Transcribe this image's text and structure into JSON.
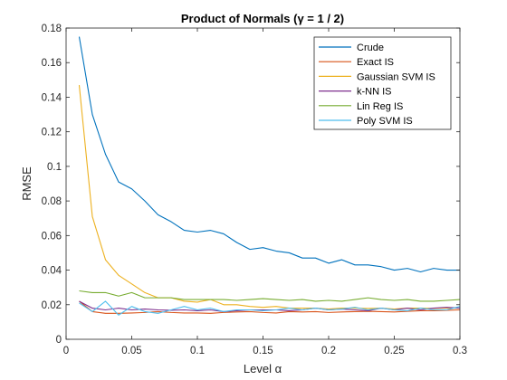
{
  "chart_data": {
    "type": "line",
    "title": "Product of Normals (γ = 1 / 2)",
    "xlabel": "Level α",
    "ylabel": "RMSE",
    "xlim": [
      0,
      0.3
    ],
    "ylim": [
      0,
      0.18
    ],
    "x_ticks": [
      0,
      0.05,
      0.1,
      0.15,
      0.2,
      0.25,
      0.3
    ],
    "x_tick_labels": [
      "0",
      "0.05",
      "0.1",
      "0.15",
      "0.2",
      "0.25",
      "0.3"
    ],
    "y_ticks": [
      0,
      0.02,
      0.04,
      0.06,
      0.08,
      0.1,
      0.12,
      0.14,
      0.16,
      0.18
    ],
    "y_tick_labels": [
      "0",
      "0.02",
      "0.04",
      "0.06",
      "0.08",
      "0.1",
      "0.12",
      "0.14",
      "0.16",
      "0.18"
    ],
    "grid": false,
    "legend_position": "top-right",
    "x": [
      0.01,
      0.02,
      0.03,
      0.04,
      0.05,
      0.06,
      0.07,
      0.08,
      0.09,
      0.1,
      0.11,
      0.12,
      0.13,
      0.14,
      0.15,
      0.16,
      0.17,
      0.18,
      0.19,
      0.2,
      0.21,
      0.22,
      0.23,
      0.24,
      0.25,
      0.26,
      0.27,
      0.28,
      0.29,
      0.3
    ],
    "series": [
      {
        "name": "Crude",
        "color": "#0072BD",
        "values": [
          0.175,
          0.13,
          0.107,
          0.091,
          0.087,
          0.08,
          0.072,
          0.068,
          0.063,
          0.062,
          0.063,
          0.061,
          0.056,
          0.052,
          0.053,
          0.051,
          0.05,
          0.047,
          0.047,
          0.044,
          0.046,
          0.043,
          0.043,
          0.042,
          0.04,
          0.041,
          0.039,
          0.041,
          0.04,
          0.04
        ]
      },
      {
        "name": "Exact IS",
        "color": "#D95319",
        "values": [
          0.022,
          0.016,
          0.015,
          0.015,
          0.0152,
          0.0155,
          0.016,
          0.0155,
          0.0152,
          0.0152,
          0.015,
          0.0155,
          0.0158,
          0.016,
          0.0155,
          0.0152,
          0.016,
          0.0158,
          0.016,
          0.0155,
          0.0158,
          0.016,
          0.0162,
          0.016,
          0.0158,
          0.0162,
          0.0165,
          0.0165,
          0.0168,
          0.017
        ]
      },
      {
        "name": "Gaussian SVM IS",
        "color": "#EDB120",
        "values": [
          0.147,
          0.071,
          0.046,
          0.037,
          0.032,
          0.027,
          0.024,
          0.024,
          0.022,
          0.0215,
          0.023,
          0.02,
          0.02,
          0.019,
          0.0185,
          0.019,
          0.018,
          0.018,
          0.018,
          0.0175,
          0.018,
          0.018,
          0.0178,
          0.018,
          0.0175,
          0.018,
          0.018,
          0.0178,
          0.018,
          0.018
        ]
      },
      {
        "name": "k-NN IS",
        "color": "#7E2F8E",
        "values": [
          0.022,
          0.018,
          0.017,
          0.018,
          0.017,
          0.0175,
          0.017,
          0.0168,
          0.017,
          0.0165,
          0.017,
          0.016,
          0.0165,
          0.017,
          0.017,
          0.017,
          0.0165,
          0.017,
          0.018,
          0.017,
          0.0175,
          0.017,
          0.0165,
          0.018,
          0.017,
          0.018,
          0.017,
          0.018,
          0.0185,
          0.018
        ]
      },
      {
        "name": "Lin Reg IS",
        "color": "#77AC30",
        "values": [
          0.028,
          0.027,
          0.027,
          0.025,
          0.027,
          0.024,
          0.024,
          0.024,
          0.023,
          0.023,
          0.023,
          0.023,
          0.0225,
          0.023,
          0.0235,
          0.023,
          0.0225,
          0.023,
          0.022,
          0.0225,
          0.022,
          0.023,
          0.024,
          0.023,
          0.0225,
          0.023,
          0.022,
          0.022,
          0.0225,
          0.023
        ]
      },
      {
        "name": "Poly SVM IS",
        "color": "#4DBEEE",
        "values": [
          0.021,
          0.016,
          0.022,
          0.014,
          0.019,
          0.016,
          0.015,
          0.017,
          0.019,
          0.017,
          0.018,
          0.016,
          0.017,
          0.017,
          0.0165,
          0.017,
          0.018,
          0.017,
          0.018,
          0.017,
          0.0175,
          0.0185,
          0.017,
          0.018,
          0.017,
          0.0165,
          0.018,
          0.017,
          0.017,
          0.019
        ]
      }
    ]
  }
}
